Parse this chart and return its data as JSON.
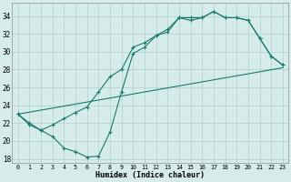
{
  "xlabel": "Humidex (Indice chaleur)",
  "background_color": "#d5ecea",
  "grid_color": "#b5d5d2",
  "line_color": "#1a7a6e",
  "xlim": [
    -0.5,
    23.5
  ],
  "ylim": [
    17.5,
    35.5
  ],
  "xticks": [
    0,
    1,
    2,
    3,
    4,
    5,
    6,
    7,
    8,
    9,
    10,
    11,
    12,
    13,
    14,
    15,
    16,
    17,
    18,
    19,
    20,
    21,
    22,
    23
  ],
  "yticks": [
    18,
    20,
    22,
    24,
    26,
    28,
    30,
    32,
    34
  ],
  "curve1_x": [
    0,
    1,
    2,
    3,
    4,
    5,
    6,
    7,
    8,
    9,
    10,
    11,
    12,
    13,
    14,
    15,
    16,
    17,
    18,
    19,
    20,
    21,
    22,
    23
  ],
  "curve1_y": [
    23.0,
    21.8,
    21.2,
    20.5,
    19.2,
    18.8,
    18.2,
    18.3,
    21.0,
    25.5,
    29.8,
    30.5,
    31.8,
    32.2,
    33.8,
    33.8,
    33.8,
    34.5,
    33.8,
    33.8,
    33.5,
    31.5,
    29.5,
    28.5
  ],
  "curve2_x": [
    0,
    1,
    2,
    3,
    4,
    5,
    6,
    7,
    8,
    9,
    10,
    11,
    12,
    13,
    14,
    15,
    16,
    17,
    18,
    19,
    20,
    21,
    22,
    23
  ],
  "curve2_y": [
    23.0,
    22.0,
    21.2,
    21.8,
    22.5,
    23.2,
    23.8,
    25.5,
    27.2,
    28.0,
    30.5,
    31.0,
    31.8,
    32.5,
    33.8,
    33.5,
    33.8,
    34.5,
    33.8,
    33.8,
    33.5,
    31.5,
    29.5,
    28.5
  ],
  "line3_x": [
    0,
    23
  ],
  "line3_y": [
    23.0,
    28.2
  ]
}
